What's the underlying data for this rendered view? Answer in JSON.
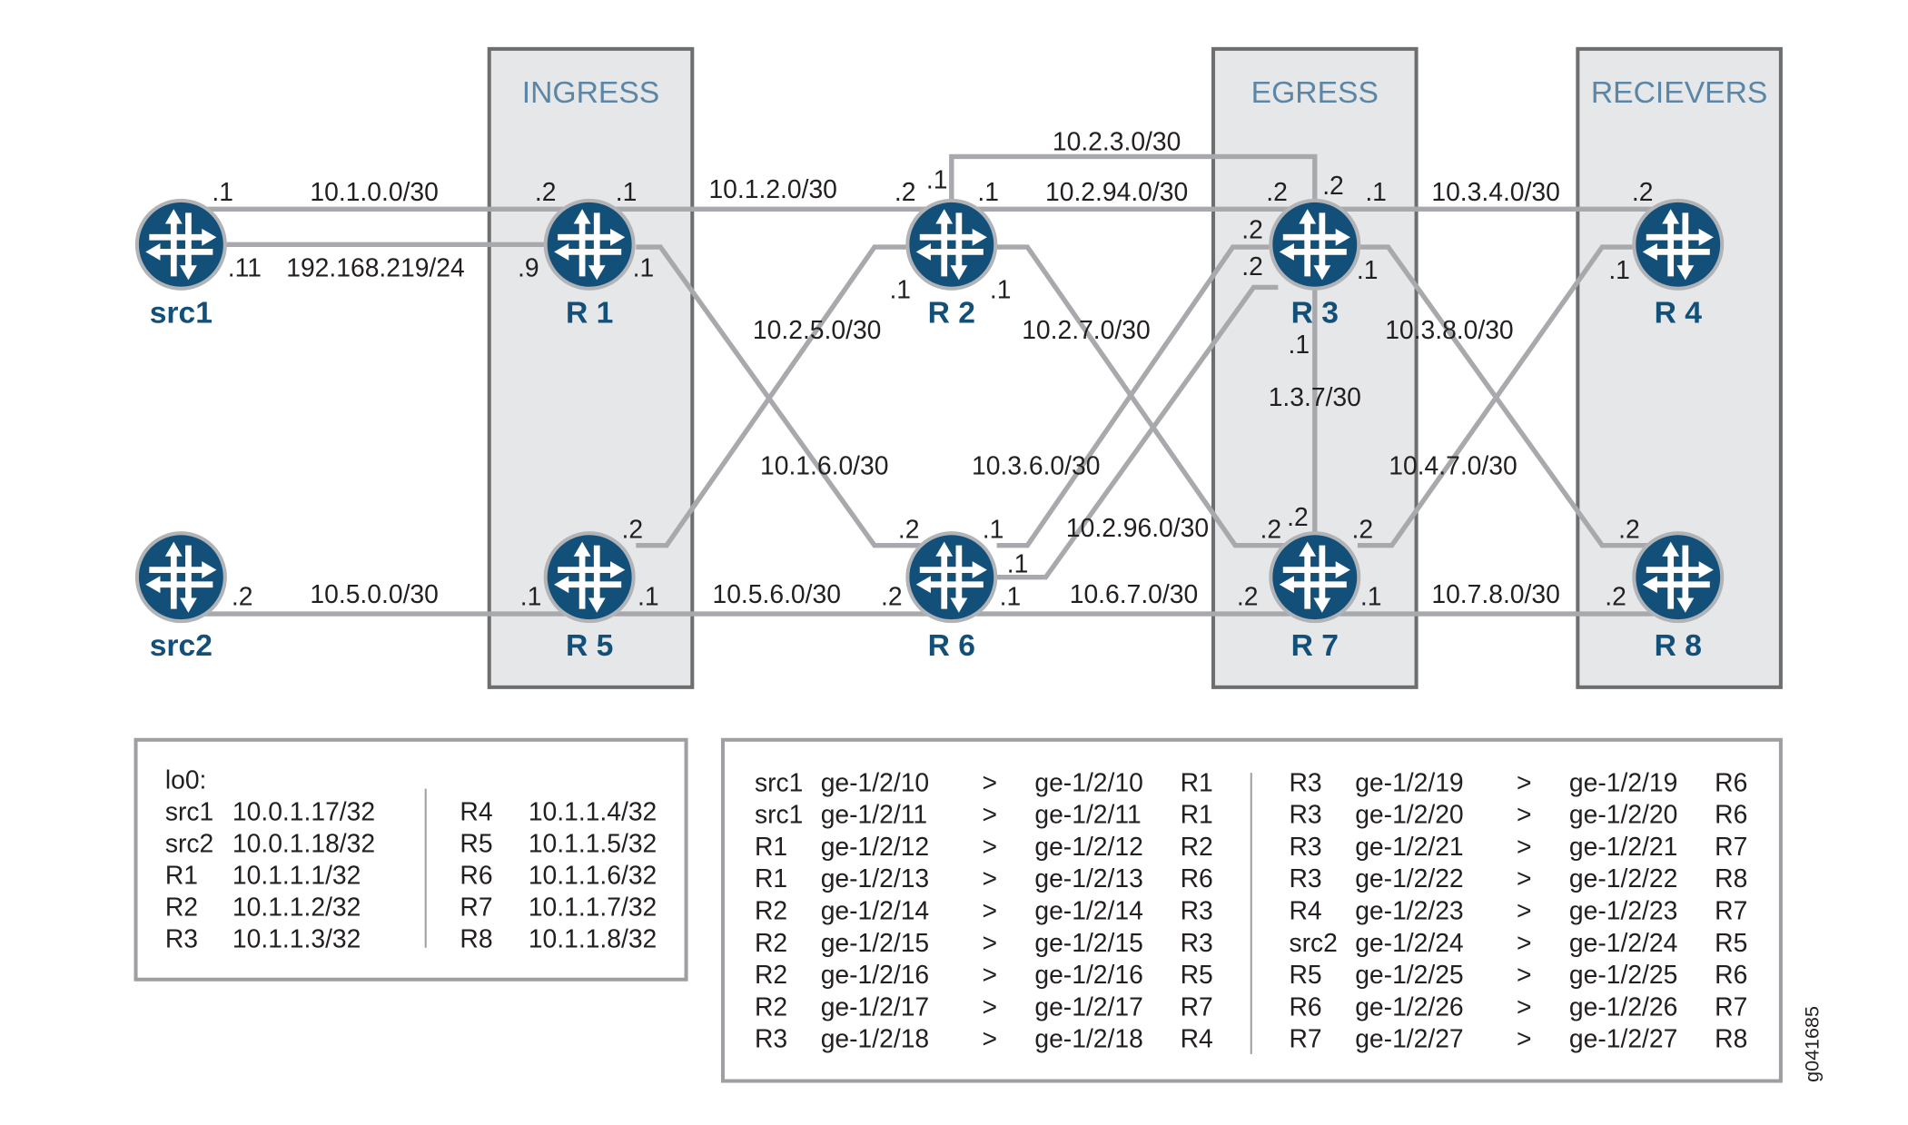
{
  "zones": [
    {
      "id": "ingress",
      "title": "INGRESS"
    },
    {
      "id": "egress",
      "title": "EGRESS"
    },
    {
      "id": "receivers",
      "title": "RECIEVERS"
    }
  ],
  "routers": [
    {
      "id": "src1",
      "name": "src1"
    },
    {
      "id": "r1",
      "name": "R 1"
    },
    {
      "id": "r2",
      "name": "R 2"
    },
    {
      "id": "r3",
      "name": "R 3"
    },
    {
      "id": "r4",
      "name": "R 4"
    },
    {
      "id": "src2",
      "name": "src2"
    },
    {
      "id": "r5",
      "name": "R 5"
    },
    {
      "id": "r6",
      "name": "R 6"
    },
    {
      "id": "r7",
      "name": "R 7"
    },
    {
      "id": "r8",
      "name": "R 8"
    }
  ],
  "subnet_labels": [
    "10.1.0.0/30",
    "192.168.219/24",
    "10.1.2.0/30",
    "10.2.3.0/30",
    "10.2.94.0/30",
    "10.3.4.0/30",
    "10.2.5.0/30",
    "10.2.7.0/30",
    "10.3.8.0/30",
    "1.3.7/30",
    "10.1.6.0/30",
    "10.3.6.0/30",
    "10.4.7.0/30",
    "10.2.96.0/30",
    "10.5.0.0/30",
    "10.5.6.0/30",
    "10.6.7.0/30",
    "10.7.8.0/30"
  ],
  "interface_labels": [
    ".1",
    ".11",
    ".2",
    ".1",
    ".9",
    ".1",
    ".2",
    ".1",
    ".1",
    ".1",
    ".1",
    ".2",
    ".2",
    ".1",
    ".2",
    ".2",
    ".1",
    ".1",
    ".2",
    ".1",
    ".2",
    ".2",
    ".1",
    ".1",
    ".2",
    ".1",
    ".1",
    ".2",
    ".1",
    ".2",
    ".2",
    ".2",
    ".2",
    ".1",
    ".2",
    ".2"
  ],
  "loopbacks": {
    "title": "lo0:",
    "left": [
      [
        "src1",
        "10.0.1.17/32"
      ],
      [
        "src2",
        "10.0.1.18/32"
      ],
      [
        "R1",
        "10.1.1.1/32"
      ],
      [
        "R2",
        "10.1.1.2/32"
      ],
      [
        "R3",
        "10.1.1.3/32"
      ]
    ],
    "right": [
      [
        "R4",
        "10.1.1.4/32"
      ],
      [
        "R5",
        "10.1.1.5/32"
      ],
      [
        "R6",
        "10.1.1.6/32"
      ],
      [
        "R7",
        "10.1.1.7/32"
      ],
      [
        "R8",
        "10.1.1.8/32"
      ]
    ]
  },
  "interfaces": {
    "left": [
      [
        "src1",
        "ge-1/2/10",
        ">",
        "ge-1/2/10",
        "R1"
      ],
      [
        "src1",
        "ge-1/2/11",
        ">",
        "ge-1/2/11",
        "R1"
      ],
      [
        "R1",
        "ge-1/2/12",
        ">",
        "ge-1/2/12",
        "R2"
      ],
      [
        "R1",
        "ge-1/2/13",
        ">",
        "ge-1/2/13",
        "R6"
      ],
      [
        "R2",
        "ge-1/2/14",
        ">",
        "ge-1/2/14",
        "R3"
      ],
      [
        "R2",
        "ge-1/2/15",
        ">",
        "ge-1/2/15",
        "R3"
      ],
      [
        "R2",
        "ge-1/2/16",
        ">",
        "ge-1/2/16",
        "R5"
      ],
      [
        "R2",
        "ge-1/2/17",
        ">",
        "ge-1/2/17",
        "R7"
      ],
      [
        "R3",
        "ge-1/2/18",
        ">",
        "ge-1/2/18",
        "R4"
      ]
    ],
    "right": [
      [
        "R3",
        "ge-1/2/19",
        ">",
        "ge-1/2/19",
        "R6"
      ],
      [
        "R3",
        "ge-1/2/20",
        ">",
        "ge-1/2/20",
        "R6"
      ],
      [
        "R3",
        "ge-1/2/21",
        ">",
        "ge-1/2/21",
        "R7"
      ],
      [
        "R3",
        "ge-1/2/22",
        ">",
        "ge-1/2/22",
        "R8"
      ],
      [
        "R4",
        "ge-1/2/23",
        ">",
        "ge-1/2/23",
        "R7"
      ],
      [
        "src2",
        "ge-1/2/24",
        ">",
        "ge-1/2/24",
        "R5"
      ],
      [
        "R5",
        "ge-1/2/25",
        ">",
        "ge-1/2/25",
        "R6"
      ],
      [
        "R6",
        "ge-1/2/26",
        ">",
        "ge-1/2/26",
        "R7"
      ],
      [
        "R7",
        "ge-1/2/27",
        ">",
        "ge-1/2/27",
        "R8"
      ]
    ]
  },
  "figure_id": "g041685",
  "colors": {
    "router": "#12507a",
    "zone_title": "#5b86a6",
    "link": "#a7a9ac",
    "zone_fill": "#e6e7e9"
  },
  "icons": {
    "router": "router-icon"
  }
}
